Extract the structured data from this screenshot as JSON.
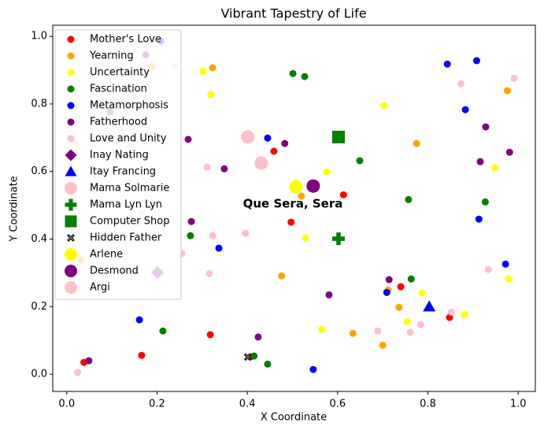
{
  "chart_data": {
    "type": "scatter",
    "title": "Vibrant Tapestry of Life",
    "x_label": "X Coordinate",
    "y_label": "Y Coordinate",
    "annotation": "Que Sera, Sera",
    "legend": "upper left",
    "xlim": [
      -0.031,
      1.038
    ],
    "ylim": [
      -0.051,
      1.033
    ],
    "xticks": [
      {
        "value": 0,
        "label": "0.0"
      },
      0.2,
      0.4,
      0.6,
      0.8,
      {
        "value": 1,
        "label": "1.0"
      }
    ],
    "yticks": [
      {
        "value": 0,
        "label": "0.0"
      },
      0.2,
      0.4,
      0.6,
      0.8,
      {
        "value": 1,
        "label": "1.0"
      }
    ],
    "series": [
      {
        "name": "Mother's Love",
        "color": "red",
        "marker": "o",
        "x": [
          0.459,
          0.613,
          0.497,
          0.74,
          0.848,
          0.318,
          0.166,
          0.407,
          0.038
        ],
        "y": [
          0.66,
          0.531,
          0.45,
          0.259,
          0.168,
          0.117,
          0.056,
          0.051,
          0.035
        ]
      },
      {
        "name": "Yearning",
        "color": "orange",
        "marker": "o",
        "x": [
          0.323,
          0.19,
          0.976,
          0.775,
          0.52,
          0.476,
          0.634,
          0.736,
          0.7,
          0.712,
          0.031
        ],
        "y": [
          0.907,
          0.911,
          0.839,
          0.683,
          0.527,
          0.291,
          0.121,
          0.198,
          0.086,
          0.249,
          0.338
        ]
      },
      {
        "name": "Uncertainty",
        "color": "yellow",
        "marker": "o",
        "x": [
          0.302,
          0.319,
          0.703,
          0.576,
          0.948,
          0.529,
          0.787,
          0.979,
          0.754,
          0.565,
          0.881
        ],
        "y": [
          0.897,
          0.828,
          0.795,
          0.599,
          0.611,
          0.403,
          0.24,
          0.282,
          0.156,
          0.133,
          0.177
        ]
      },
      {
        "name": "Fascination",
        "color": "green",
        "marker": "o",
        "x": [
          0.501,
          0.527,
          0.649,
          0.757,
          0.927,
          0.274,
          0.763,
          0.213,
          0.415,
          0.445,
          0.096
        ],
        "y": [
          0.89,
          0.881,
          0.632,
          0.517,
          0.51,
          0.41,
          0.282,
          0.128,
          0.054,
          0.03,
          0.776
        ]
      },
      {
        "name": "Metamorphosis",
        "color": "blue",
        "marker": "o",
        "x": [
          0.908,
          0.843,
          0.883,
          0.445,
          0.913,
          0.972,
          0.337,
          0.709,
          0.161,
          0.546,
          0.208
        ],
        "y": [
          0.928,
          0.918,
          0.783,
          0.699,
          0.459,
          0.326,
          0.373,
          0.242,
          0.161,
          0.014,
          0.986
        ]
      },
      {
        "name": "Fatherhood",
        "color": "purple",
        "marker": "o",
        "x": [
          0.269,
          0.483,
          0.928,
          0.981,
          0.916,
          0.349,
          0.276,
          0.714,
          0.581,
          0.424,
          0.049,
          0.175
        ],
        "y": [
          0.695,
          0.683,
          0.732,
          0.657,
          0.629,
          0.608,
          0.452,
          0.28,
          0.235,
          0.11,
          0.04,
          0.945
        ]
      },
      {
        "name": "Love and Unity",
        "color": "pink",
        "marker": "o",
        "x": [
          0.009,
          0.021,
          0.873,
          0.991,
          0.311,
          0.323,
          0.396,
          0.255,
          0.316,
          0.934,
          0.689,
          0.761,
          0.784,
          0.852,
          0.024,
          0.239,
          0.166,
          0.12
        ],
        "y": [
          0.853,
          0.685,
          0.86,
          0.876,
          0.613,
          0.41,
          0.417,
          0.357,
          0.298,
          0.31,
          0.128,
          0.124,
          0.147,
          0.184,
          0.005,
          0.911,
          0.478,
          0.725
        ]
      },
      {
        "name": "Inay Nating",
        "color": "purple",
        "marker": "D",
        "x": [
          0.201
        ],
        "y": [
          0.301
        ]
      },
      {
        "name": "Itay Francing",
        "color": "blue",
        "marker": "^",
        "x": [
          0.803
        ],
        "y": [
          0.2
        ]
      },
      {
        "name": "Mama Solmarie",
        "color": "pink",
        "marker": "o",
        "x": [
          0.401
        ],
        "y": [
          0.702
        ]
      },
      {
        "name": "Mama Lyn Lyn",
        "color": "green",
        "marker": "P",
        "x": [
          0.602
        ],
        "y": [
          0.401
        ]
      },
      {
        "name": "Computer Shop",
        "color": "green",
        "marker": "s",
        "x": [
          0.602
        ],
        "y": [
          0.702
        ]
      },
      {
        "name": "Hidden Father",
        "color": "black",
        "marker": "X",
        "x": [
          0.401
        ],
        "y": [
          0.051
        ]
      },
      {
        "name": "Arlene",
        "color": "yellow",
        "marker": "o",
        "x": [
          0.508
        ],
        "y": [
          0.555
        ]
      },
      {
        "name": "Desmond",
        "color": "purple",
        "marker": "o",
        "x": [
          0.546
        ],
        "y": [
          0.557
        ]
      },
      {
        "name": "Argi",
        "color": "pink",
        "marker": "o",
        "x": [
          0.431
        ],
        "y": [
          0.625
        ]
      }
    ]
  }
}
